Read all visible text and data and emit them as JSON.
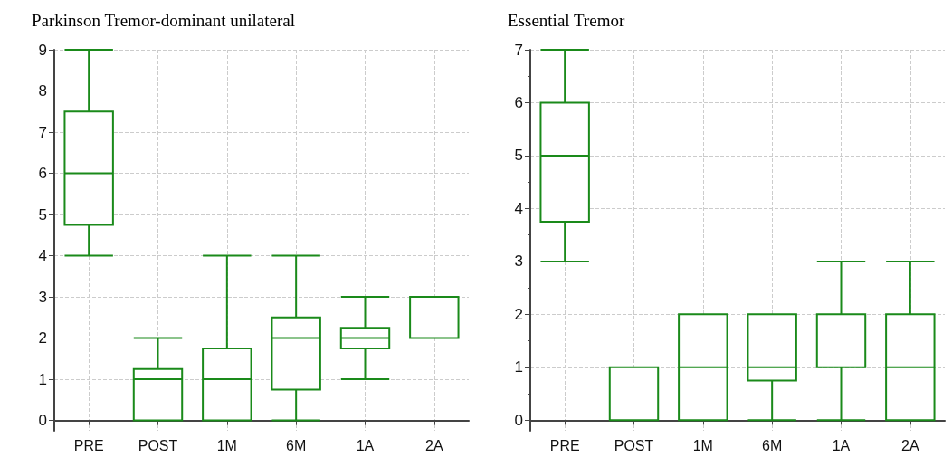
{
  "chart_data": [
    {
      "type": "box",
      "title": "Parkinson Tremor-dominant unilateral",
      "categories": [
        "PRE",
        "POST",
        "1M",
        "6M",
        "1A",
        "2A"
      ],
      "ylim": [
        -0.25,
        9
      ],
      "yticks": [
        0,
        1,
        2,
        3,
        4,
        5,
        6,
        7,
        8,
        9
      ],
      "grid": true,
      "series": [
        {
          "color": "#1a8a1a",
          "boxes": [
            {
              "low": 4,
              "q1": 4.75,
              "median": 6,
              "q3": 7.5,
              "high": 9
            },
            {
              "low": 0,
              "q1": 0,
              "median": 1,
              "q3": 1.25,
              "high": 2
            },
            {
              "low": 0,
              "q1": 0,
              "median": 1,
              "q3": 1.75,
              "high": 4
            },
            {
              "low": 0,
              "q1": 0.75,
              "median": 2,
              "q3": 2.5,
              "high": 4
            },
            {
              "low": 1,
              "q1": 1.75,
              "median": 2,
              "q3": 2.25,
              "high": 3
            },
            {
              "low": 2,
              "q1": 2,
              "median": 2,
              "q3": 3,
              "high": 3
            }
          ]
        }
      ]
    },
    {
      "type": "box",
      "title": "Essential Tremor",
      "categories": [
        "PRE",
        "POST",
        "1M",
        "6M",
        "1A",
        "2A"
      ],
      "ylim": [
        -0.2,
        7
      ],
      "yticks": [
        0,
        1,
        2,
        3,
        4,
        5,
        6,
        7
      ],
      "grid": true,
      "series": [
        {
          "color": "#1a8a1a",
          "boxes": [
            {
              "low": 3,
              "q1": 3.75,
              "median": 5,
              "q3": 6,
              "high": 7
            },
            {
              "low": 0,
              "q1": 0,
              "median": 0,
              "q3": 1,
              "high": 1
            },
            {
              "low": 0,
              "q1": 0,
              "median": 1,
              "q3": 2,
              "high": 2
            },
            {
              "low": 0,
              "q1": 0.75,
              "median": 1,
              "q3": 2,
              "high": 2
            },
            {
              "low": 0,
              "q1": 1,
              "median": 1,
              "q3": 2,
              "high": 3
            },
            {
              "low": 0,
              "q1": 0,
              "median": 1,
              "q3": 2,
              "high": 3
            }
          ]
        }
      ]
    }
  ]
}
